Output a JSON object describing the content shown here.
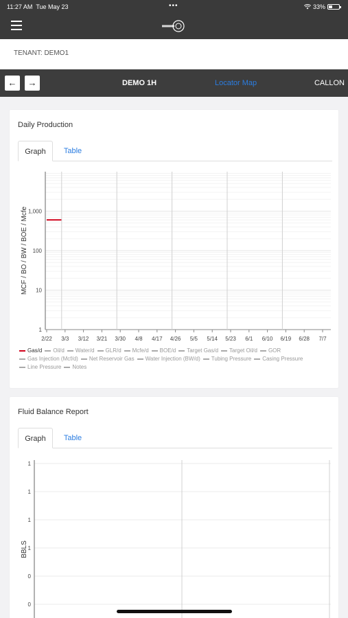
{
  "status": {
    "time": "11:27 AM",
    "date": "Tue May 23",
    "dots": "•••",
    "battery": "33%"
  },
  "appbar": {
    "menu_icon": "hamburger-icon",
    "logo_icon": "ovation-logo-icon"
  },
  "tenant": {
    "label": "TENANT: DEMO1"
  },
  "nav": {
    "back_icon": "arrow-left-icon",
    "forward_icon": "arrow-right-icon",
    "back_glyph": "←",
    "forward_glyph": "→",
    "title": "DEMO 1H",
    "link": "Locator Map",
    "right": "CALLON"
  },
  "daily": {
    "title": "Daily Production",
    "tabs": [
      {
        "label": "Graph"
      },
      {
        "label": "Table"
      }
    ],
    "legend": [
      {
        "label": "Gas/d",
        "color": "#d0021b",
        "active": true
      },
      {
        "label": "Oil/d",
        "active": false
      },
      {
        "label": "Water/d",
        "active": false
      },
      {
        "label": "GLR/d",
        "active": false
      },
      {
        "label": "Mcfe/d",
        "active": false
      },
      {
        "label": "BOE/d",
        "active": false
      },
      {
        "label": "Target Gas/d",
        "active": false
      },
      {
        "label": "Target Oil/d",
        "active": false
      },
      {
        "label": "GOR",
        "active": false
      },
      {
        "label": "Gas Injection (Mcf/d)",
        "active": false
      },
      {
        "label": "Net Reservoir Gas",
        "active": false
      },
      {
        "label": "Water Injection (BW/d)",
        "active": false
      },
      {
        "label": "Tubing Pressure",
        "active": false
      },
      {
        "label": "Casing Pressure",
        "active": false
      },
      {
        "label": "Line Pressure",
        "active": false
      },
      {
        "label": "Notes",
        "active": false
      }
    ]
  },
  "fluid": {
    "title": "Fluid Balance Report",
    "tabs": [
      {
        "label": "Graph"
      },
      {
        "label": "Table"
      }
    ]
  },
  "chart_data": [
    {
      "type": "line",
      "ylabel": "MCF / BO / BW / BOE / Mcfe",
      "yscale": "log",
      "yticks": [
        "1",
        "10",
        "100",
        "1,000"
      ],
      "ylim": [
        1,
        10000
      ],
      "categories": [
        "2/22",
        "3/3",
        "3/12",
        "3/21",
        "3/30",
        "4/8",
        "4/17",
        "4/26",
        "5/5",
        "5/14",
        "5/23",
        "6/1",
        "6/10",
        "6/19",
        "6/28",
        "7/7"
      ],
      "series": [
        {
          "name": "Gas/d",
          "color": "#d0021b",
          "x_start": "2/22",
          "x_end": "2/29",
          "value": 600
        }
      ],
      "grid": true
    },
    {
      "type": "line",
      "ylabel": "BBLS",
      "yticks": [
        "1",
        "1",
        "1",
        "1",
        "0",
        "0"
      ],
      "grid": true,
      "series": []
    }
  ]
}
